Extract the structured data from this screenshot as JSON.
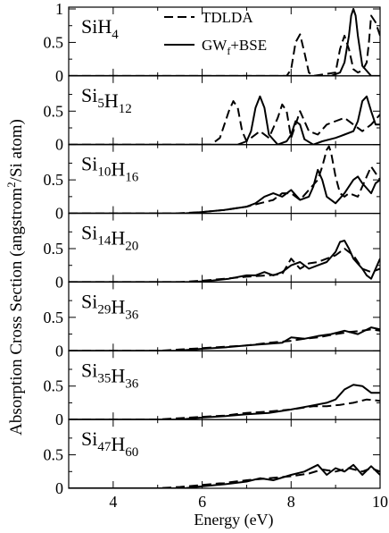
{
  "chart_data": {
    "type": "line",
    "ylabel_plain": "Absorption Cross Section (angstrom",
    "ylabel_sup": "2",
    "ylabel_tail": "/Si atom)",
    "xlabel": "Energy (eV)",
    "xlim": [
      3,
      10
    ],
    "xticks": [
      "4",
      "6",
      "8",
      "10"
    ],
    "legend": {
      "position": "top-right of first panel",
      "entries": [
        {
          "label": "TDLDA",
          "style": "dashed"
        },
        {
          "label_main": "GW",
          "label_sub": "f",
          "label_tail": "+BSE",
          "style": "solid"
        }
      ]
    },
    "panels": [
      {
        "id": "sih4",
        "label_parts": [
          [
            "Si",
            ""
          ],
          [
            "H",
            "4"
          ]
        ],
        "ylim": [
          0,
          1
        ],
        "yticks": [
          "0",
          "0.5",
          "1"
        ],
        "series": [
          {
            "name": "TDLDA",
            "x": [
              3,
              6,
              7.9,
              8.0,
              8.1,
              8.2,
              8.3,
              8.4,
              8.5,
              9.0,
              9.1,
              9.2,
              9.3,
              9.4,
              9.5,
              9.6,
              9.7,
              9.75,
              9.8,
              9.9,
              10.0
            ],
            "y": [
              0,
              0,
              0,
              0.1,
              0.5,
              0.62,
              0.35,
              0.05,
              0,
              0.05,
              0.4,
              0.6,
              0.4,
              0.1,
              0.05,
              0.08,
              0.2,
              0.5,
              0.9,
              0.8,
              0.6
            ]
          },
          {
            "name": "GW_f+BSE",
            "x": [
              3,
              8.9,
              9.1,
              9.2,
              9.3,
              9.35,
              9.4,
              9.45,
              9.5,
              9.6,
              9.8,
              10.0
            ],
            "y": [
              0,
              0,
              0.05,
              0.2,
              0.6,
              0.9,
              1.0,
              0.9,
              0.6,
              0.15,
              0,
              0
            ]
          }
        ]
      },
      {
        "id": "si5h12",
        "label_parts": [
          [
            "Si",
            "5"
          ],
          [
            "H",
            "12"
          ]
        ],
        "ylim": [
          0,
          1
        ],
        "yticks": [
          "0",
          "0.5"
        ],
        "series": [
          {
            "name": "TDLDA",
            "x": [
              3,
              6.2,
              6.4,
              6.6,
              6.7,
              6.8,
              6.9,
              7.0,
              7.3,
              7.5,
              7.7,
              7.8,
              7.9,
              8.0,
              8.1,
              8.2,
              8.4,
              8.6,
              8.8,
              9.0,
              9.2,
              9.4,
              9.6,
              9.8,
              10.0
            ],
            "y": [
              0,
              0,
              0.1,
              0.5,
              0.65,
              0.55,
              0.2,
              0.05,
              0.2,
              0.1,
              0.4,
              0.6,
              0.5,
              0.1,
              0.3,
              0.5,
              0.2,
              0.15,
              0.3,
              0.35,
              0.4,
              0.3,
              0.2,
              0.3,
              0.45
            ]
          },
          {
            "name": "GW_f+BSE",
            "x": [
              3,
              6.8,
              7.0,
              7.1,
              7.2,
              7.3,
              7.4,
              7.5,
              7.7,
              7.9,
              8.0,
              8.1,
              8.2,
              8.3,
              8.5,
              8.7,
              9.0,
              9.2,
              9.4,
              9.5,
              9.6,
              9.7,
              9.8,
              9.9,
              10.0
            ],
            "y": [
              0,
              0,
              0.05,
              0.2,
              0.55,
              0.72,
              0.55,
              0.15,
              0,
              0.05,
              0.15,
              0.35,
              0.3,
              0.08,
              0,
              0.05,
              0.1,
              0.15,
              0.2,
              0.35,
              0.65,
              0.72,
              0.5,
              0.3,
              0.3
            ]
          }
        ]
      },
      {
        "id": "si10h16",
        "label_parts": [
          [
            "Si",
            "10"
          ],
          [
            "H",
            "16"
          ]
        ],
        "ylim": [
          0,
          1
        ],
        "yticks": [
          "0",
          "0.5"
        ],
        "series": [
          {
            "name": "TDLDA",
            "x": [
              3,
              5.4,
              6.0,
              6.5,
              7.0,
              7.3,
              7.6,
              7.8,
              8.0,
              8.2,
              8.4,
              8.6,
              8.7,
              8.8,
              8.85,
              8.9,
              9.0,
              9.1,
              9.2,
              9.3,
              9.5,
              9.7,
              9.8,
              10.0
            ],
            "y": [
              0,
              0,
              0.02,
              0.05,
              0.1,
              0.15,
              0.2,
              0.3,
              0.3,
              0.2,
              0.35,
              0.5,
              0.7,
              0.95,
              1.0,
              0.9,
              0.55,
              0.3,
              0.25,
              0.3,
              0.25,
              0.55,
              0.7,
              0.5
            ]
          },
          {
            "name": "GW_f+BSE",
            "x": [
              3,
              5.6,
              6.0,
              6.5,
              7.0,
              7.2,
              7.4,
              7.6,
              7.8,
              8.0,
              8.2,
              8.4,
              8.5,
              8.6,
              8.7,
              8.8,
              9.0,
              9.2,
              9.4,
              9.5,
              9.6,
              9.8,
              9.9,
              10.0
            ],
            "y": [
              0,
              0,
              0.02,
              0.05,
              0.1,
              0.15,
              0.25,
              0.3,
              0.25,
              0.35,
              0.2,
              0.25,
              0.4,
              0.65,
              0.5,
              0.25,
              0.15,
              0.3,
              0.5,
              0.55,
              0.45,
              0.3,
              0.45,
              0.5
            ]
          }
        ]
      },
      {
        "id": "si14h20",
        "label_parts": [
          [
            "Si",
            "14"
          ],
          [
            "H",
            "20"
          ]
        ],
        "ylim": [
          0,
          1
        ],
        "yticks": [
          "0",
          "0.5"
        ],
        "series": [
          {
            "name": "TDLDA",
            "x": [
              3,
              5.5,
              6.0,
              6.5,
              7.0,
              7.5,
              7.8,
              8.0,
              8.2,
              8.4,
              8.6,
              8.8,
              9.0,
              9.2,
              9.4,
              9.6,
              9.8,
              10.0
            ],
            "y": [
              0,
              0,
              0.02,
              0.05,
              0.08,
              0.1,
              0.12,
              0.35,
              0.2,
              0.28,
              0.3,
              0.35,
              0.4,
              0.5,
              0.4,
              0.2,
              0.15,
              0.2
            ]
          },
          {
            "name": "GW_f+BSE",
            "x": [
              3,
              5.8,
              6.2,
              6.6,
              7.0,
              7.2,
              7.4,
              7.6,
              7.8,
              8.0,
              8.2,
              8.4,
              8.6,
              8.8,
              9.0,
              9.1,
              9.2,
              9.3,
              9.4,
              9.6,
              9.7,
              9.8,
              9.9,
              10.0
            ],
            "y": [
              0,
              0,
              0.02,
              0.05,
              0.1,
              0.1,
              0.15,
              0.1,
              0.15,
              0.25,
              0.3,
              0.2,
              0.25,
              0.3,
              0.45,
              0.6,
              0.62,
              0.5,
              0.35,
              0.2,
              0.1,
              0.05,
              0.2,
              0.35
            ]
          }
        ]
      },
      {
        "id": "si29h36",
        "label_parts": [
          [
            "Si",
            "29"
          ],
          [
            "H",
            "36"
          ]
        ],
        "ylim": [
          0,
          1
        ],
        "yticks": [
          "0",
          "0.5"
        ],
        "series": [
          {
            "name": "TDLDA",
            "x": [
              3,
              5.0,
              5.5,
              6.0,
              6.5,
              7.0,
              7.5,
              8.0,
              8.3,
              8.6,
              9.0,
              9.3,
              9.6,
              9.8,
              10.0
            ],
            "y": [
              0,
              0,
              0.02,
              0.04,
              0.06,
              0.08,
              0.12,
              0.15,
              0.18,
              0.2,
              0.25,
              0.28,
              0.3,
              0.32,
              0.3
            ]
          },
          {
            "name": "GW_f+BSE",
            "x": [
              3,
              5.4,
              6.0,
              6.5,
              7.0,
              7.4,
              7.8,
              8.0,
              8.3,
              8.6,
              8.9,
              9.2,
              9.5,
              9.8,
              10.0
            ],
            "y": [
              0,
              0,
              0.03,
              0.05,
              0.08,
              0.1,
              0.12,
              0.2,
              0.18,
              0.22,
              0.25,
              0.3,
              0.25,
              0.35,
              0.32
            ]
          }
        ]
      },
      {
        "id": "si35h36",
        "label_parts": [
          [
            "Si",
            "35"
          ],
          [
            "H",
            "36"
          ]
        ],
        "ylim": [
          0,
          1
        ],
        "yticks": [
          "0",
          "0.5"
        ],
        "series": [
          {
            "name": "TDLDA",
            "x": [
              3,
              5.0,
              5.5,
              6.0,
              6.5,
              7.0,
              7.5,
              8.0,
              8.5,
              8.8,
              9.1,
              9.4,
              9.7,
              10.0
            ],
            "y": [
              0,
              0,
              0.02,
              0.04,
              0.06,
              0.1,
              0.12,
              0.15,
              0.2,
              0.2,
              0.22,
              0.25,
              0.3,
              0.28
            ]
          },
          {
            "name": "GW_f+BSE",
            "x": [
              3,
              5.5,
              6.0,
              6.5,
              7.0,
              7.5,
              8.0,
              8.4,
              8.8,
              9.0,
              9.2,
              9.4,
              9.6,
              9.8,
              10.0
            ],
            "y": [
              0,
              0,
              0.03,
              0.05,
              0.08,
              0.1,
              0.15,
              0.2,
              0.25,
              0.3,
              0.45,
              0.52,
              0.5,
              0.4,
              0.4
            ]
          }
        ]
      },
      {
        "id": "si47h60",
        "label_parts": [
          [
            "Si",
            "47"
          ],
          [
            "H",
            "60"
          ]
        ],
        "ylim": [
          0,
          1
        ],
        "yticks": [
          "0",
          "0.5"
        ],
        "series": [
          {
            "name": "TDLDA",
            "x": [
              3,
              5.0,
              5.5,
              6.0,
              6.5,
              7.0,
              7.5,
              8.0,
              8.4,
              8.7,
              9.0,
              9.3,
              9.6,
              9.8,
              10.0
            ],
            "y": [
              0,
              0,
              0.02,
              0.05,
              0.08,
              0.12,
              0.15,
              0.18,
              0.22,
              0.28,
              0.25,
              0.3,
              0.25,
              0.3,
              0.25
            ]
          },
          {
            "name": "GW_f+BSE",
            "x": [
              3,
              5.6,
              6.0,
              6.5,
              7.0,
              7.3,
              7.6,
              8.0,
              8.3,
              8.6,
              8.8,
              9.0,
              9.2,
              9.4,
              9.6,
              9.8,
              10.0
            ],
            "y": [
              0,
              0,
              0.03,
              0.06,
              0.1,
              0.15,
              0.12,
              0.2,
              0.25,
              0.35,
              0.2,
              0.3,
              0.25,
              0.35,
              0.2,
              0.33,
              0.2
            ]
          }
        ]
      }
    ]
  }
}
